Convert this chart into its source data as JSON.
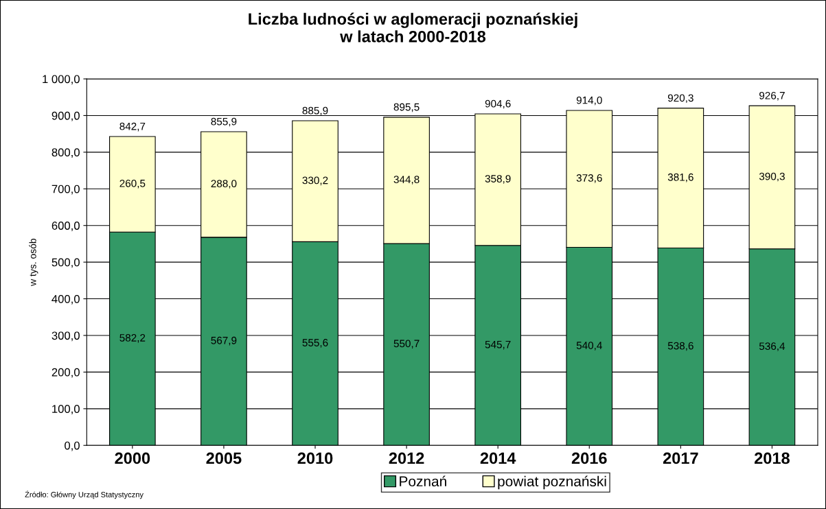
{
  "chart_data": {
    "type": "bar",
    "stacked": true,
    "title": "Liczba ludności w aglomeracji poznańskiej\nw latach 2000-2018",
    "ylabel": "w tys. osób",
    "categories": [
      "2000",
      "2005",
      "2010",
      "2012",
      "2014",
      "2016",
      "2017",
      "2018"
    ],
    "series": [
      {
        "name": "Poznań",
        "color": "#339966",
        "values": [
          582.2,
          567.9,
          555.6,
          550.7,
          545.7,
          540.4,
          538.6,
          536.4
        ],
        "value_labels": [
          "582,2",
          "567,9",
          "555,6",
          "550,7",
          "545,7",
          "540,4",
          "538,6",
          "536,4"
        ]
      },
      {
        "name": "powiat poznański",
        "color": "#ffffcc",
        "values": [
          260.5,
          288.0,
          330.2,
          344.8,
          358.9,
          373.6,
          381.6,
          390.3
        ],
        "value_labels": [
          "260,5",
          "288,0",
          "330,2",
          "344,8",
          "358,9",
          "373,6",
          "381,6",
          "390,3"
        ]
      }
    ],
    "totals": [
      "842,7",
      "855,9",
      "885,9",
      "895,5",
      "904,6",
      "914,0",
      "920,3",
      "926,7"
    ],
    "ylim": [
      0,
      1000
    ],
    "yticks": [
      {
        "value": 0,
        "label": "0,0"
      },
      {
        "value": 100,
        "label": "100,0"
      },
      {
        "value": 200,
        "label": "200,0"
      },
      {
        "value": 300,
        "label": "300,0"
      },
      {
        "value": 400,
        "label": "400,0"
      },
      {
        "value": 500,
        "label": "500,0"
      },
      {
        "value": 600,
        "label": "600,0"
      },
      {
        "value": 700,
        "label": "700,0"
      },
      {
        "value": 800,
        "label": "800,0"
      },
      {
        "value": 900,
        "label": "900,0"
      },
      {
        "value": 1000,
        "label": "1 000,0"
      }
    ],
    "grid": "y",
    "legend": "bottom",
    "annotations": [
      "Źródło: Główny Urząd Statystyczny"
    ]
  }
}
